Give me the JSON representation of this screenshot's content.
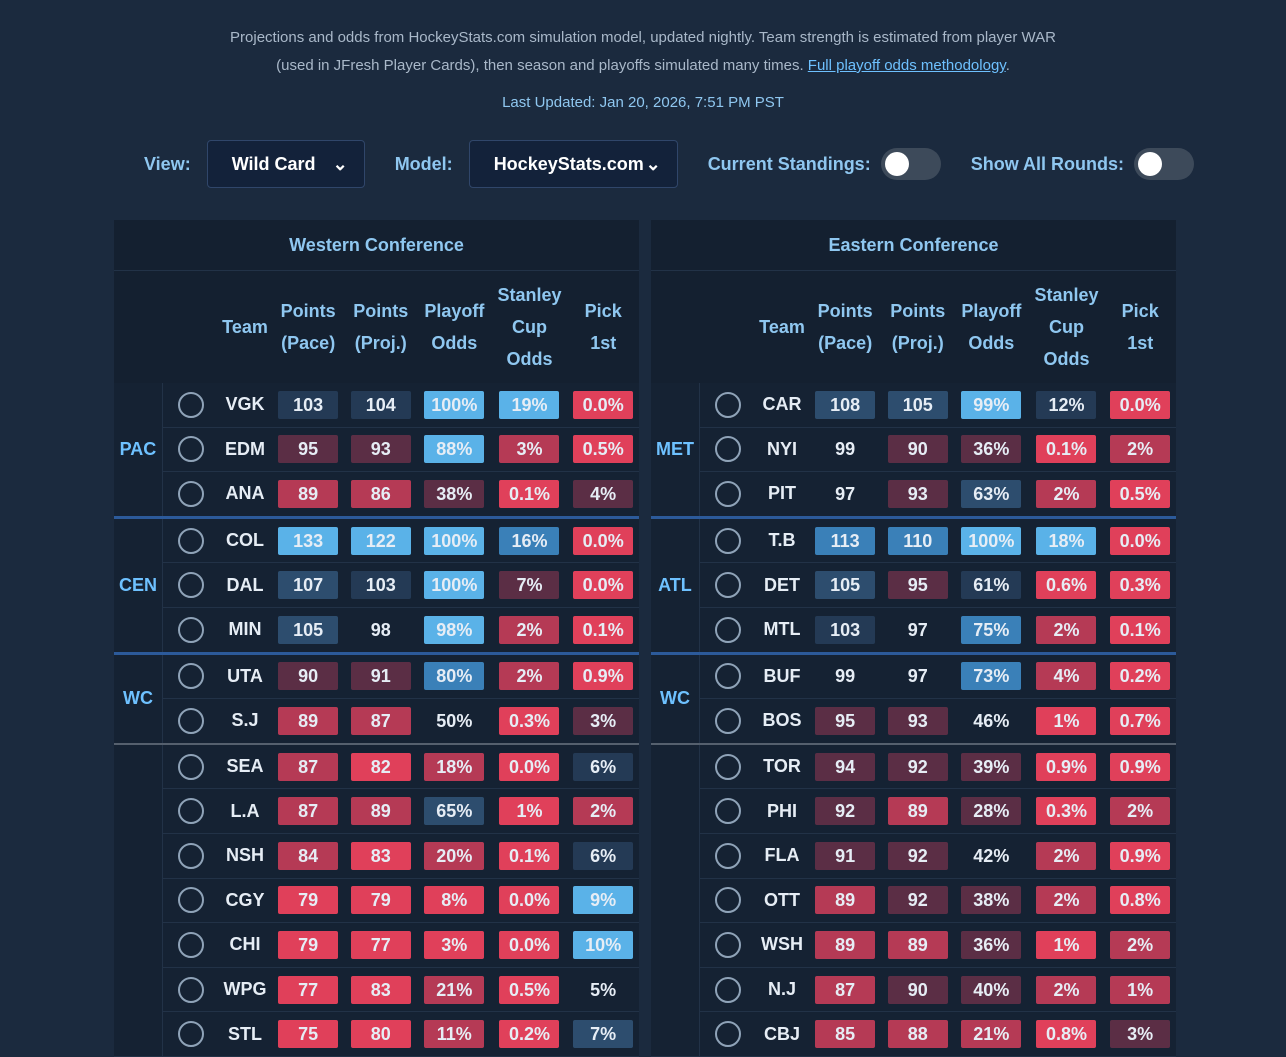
{
  "header": {
    "intro_line1": "Projections and odds from HockeyStats.com simulation model, updated nightly. Team strength is estimated from player WAR",
    "intro_line2": "(used in JFresh Player Cards), then season and playoffs simulated many times.",
    "link": "Full playoff odds methodology",
    "link_end": ".",
    "last_updated": "Last Updated: Jan 20, 2026, 7:51 PM PST"
  },
  "controls": {
    "view_label": "View:",
    "view_value": "Wild Card",
    "model_label": "Model:",
    "model_value": "HockeyStats.com",
    "standings_label": "Current Standings:",
    "rounds_label": "Show All Rounds:"
  },
  "conferences": [
    {
      "title": "Western Conference",
      "headers": [
        "Team",
        "Points (Pace)",
        "Points (Proj.)",
        "Playoff Odds",
        "Stanley Cup Odds",
        "Pick 1st"
      ],
      "groups": [
        {
          "label": "PAC",
          "rows": [
            [
              "VGK",
              "103",
              "104",
              "100%",
              "19%",
              "0.0%"
            ],
            [
              "EDM",
              "95",
              "93",
              "88%",
              "3%",
              "0.5%"
            ],
            [
              "ANA",
              "89",
              "86",
              "38%",
              "0.1%",
              "4%"
            ]
          ]
        },
        {
          "label": "CEN",
          "rows": [
            [
              "COL",
              "133",
              "122",
              "100%",
              "16%",
              "0.0%"
            ],
            [
              "DAL",
              "107",
              "103",
              "100%",
              "7%",
              "0.0%"
            ],
            [
              "MIN",
              "105",
              "98",
              "98%",
              "2%",
              "0.1%"
            ]
          ]
        },
        {
          "label": "WC",
          "rows": [
            [
              "UTA",
              "90",
              "91",
              "80%",
              "2%",
              "0.9%"
            ],
            [
              "S.J",
              "89",
              "87",
              "50%",
              "0.3%",
              "3%"
            ]
          ]
        },
        {
          "rows": [
            [
              "SEA",
              "87",
              "82",
              "18%",
              "0.0%",
              "6%"
            ],
            [
              "L.A",
              "87",
              "89",
              "65%",
              "1%",
              "2%"
            ],
            [
              "NSH",
              "84",
              "83",
              "20%",
              "0.1%",
              "6%"
            ],
            [
              "CGY",
              "79",
              "79",
              "8%",
              "0.0%",
              "9%"
            ],
            [
              "CHI",
              "79",
              "77",
              "3%",
              "0.0%",
              "10%"
            ],
            [
              "WPG",
              "77",
              "83",
              "21%",
              "0.5%",
              "5%"
            ],
            [
              "STL",
              "75",
              "80",
              "11%",
              "0.2%",
              "7%"
            ]
          ]
        }
      ]
    },
    {
      "title": "Eastern Conference",
      "headers": [
        "Team",
        "Points (Pace)",
        "Points (Proj.)",
        "Playoff Odds",
        "Stanley Cup Odds",
        "Pick 1st"
      ],
      "groups": [
        {
          "label": "MET",
          "rows": [
            [
              "CAR",
              "108",
              "105",
              "99%",
              "12%",
              "0.0%"
            ],
            [
              "NYI",
              "99",
              "90",
              "36%",
              "0.1%",
              "2%"
            ],
            [
              "PIT",
              "97",
              "93",
              "63%",
              "2%",
              "0.5%"
            ]
          ]
        },
        {
          "label": "ATL",
          "rows": [
            [
              "T.B",
              "113",
              "110",
              "100%",
              "18%",
              "0.0%"
            ],
            [
              "DET",
              "105",
              "95",
              "61%",
              "0.6%",
              "0.3%"
            ],
            [
              "MTL",
              "103",
              "97",
              "75%",
              "2%",
              "0.1%"
            ]
          ]
        },
        {
          "label": "WC",
          "rows": [
            [
              "BUF",
              "99",
              "97",
              "73%",
              "4%",
              "0.2%"
            ],
            [
              "BOS",
              "95",
              "93",
              "46%",
              "1%",
              "0.7%"
            ]
          ]
        },
        {
          "rows": [
            [
              "TOR",
              "94",
              "92",
              "39%",
              "0.9%",
              "0.9%"
            ],
            [
              "PHI",
              "92",
              "89",
              "28%",
              "0.3%",
              "2%"
            ],
            [
              "FLA",
              "91",
              "92",
              "42%",
              "2%",
              "0.9%"
            ],
            [
              "OTT",
              "89",
              "92",
              "38%",
              "2%",
              "0.8%"
            ],
            [
              "WSH",
              "89",
              "89",
              "36%",
              "1%",
              "2%"
            ],
            [
              "N.J",
              "87",
              "90",
              "40%",
              "2%",
              "1%"
            ],
            [
              "CBJ",
              "85",
              "88",
              "21%",
              "0.8%",
              "3%"
            ]
          ]
        }
      ]
    }
  ]
}
